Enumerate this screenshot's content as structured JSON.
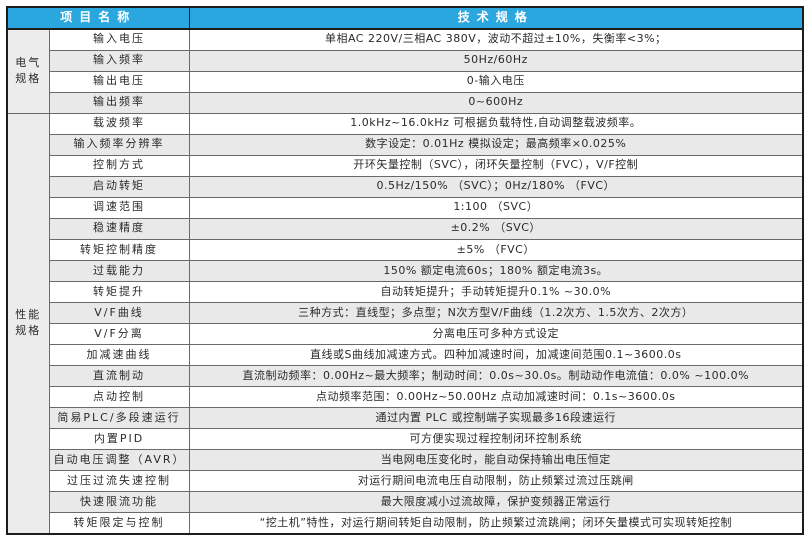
{
  "colors": {
    "header_bg": "#2AA7DF",
    "header_text": "#FFFFFF",
    "row_alt_bg": "#E9E9E9",
    "group_bg": "#ECECEC",
    "inner_border": "#6a6a6a",
    "outer_border": "#1c1c1c"
  },
  "header": {
    "items_col": "项目名称",
    "spec_col": "技术规格"
  },
  "groups": [
    {
      "label": "电气\n规格",
      "rows": [
        {
          "name": "输入电压",
          "value": "单相AC 220V/三相AC 380V，波动不超过±10%，失衡率<3%；",
          "shaded": false
        },
        {
          "name": "输入频率",
          "value": "50Hz/60Hz",
          "shaded": true
        },
        {
          "name": "输出电压",
          "value": "0-输入电压",
          "shaded": false
        },
        {
          "name": "输出频率",
          "value": "0~600Hz",
          "shaded": true
        }
      ]
    },
    {
      "label": "性能\n规格",
      "rows": [
        {
          "name": "载波频率",
          "value": "1.0kHz~16.0kHz 可根据负载特性,自动调整载波频率。",
          "shaded": false
        },
        {
          "name": "输入频率分辨率",
          "value": "数字设定：0.01Hz 模拟设定；最高频率×0.025%",
          "shaded": true
        },
        {
          "name": "控制方式",
          "value": "开环矢量控制（SVC），闭环矢量控制（FVC），V/F控制",
          "shaded": false
        },
        {
          "name": "启动转矩",
          "value": "0.5Hz/150% （SVC）；0Hz/180% （FVC）",
          "shaded": true
        },
        {
          "name": "调速范围",
          "value": "1:100 （SVC）",
          "shaded": false
        },
        {
          "name": "稳速精度",
          "value": "±0.2% （SVC）",
          "shaded": true
        },
        {
          "name": "转矩控制精度",
          "value": "±5% （FVC）",
          "shaded": false
        },
        {
          "name": "过载能力",
          "value": "150% 额定电流60s；180% 额定电流3s。",
          "shaded": true
        },
        {
          "name": "转矩提升",
          "value": "自动转矩提升；手动转矩提升0.1% ~30.0%",
          "shaded": false
        },
        {
          "name": "V/F曲线",
          "value": "三种方式：直线型；多点型；N次方型V/F曲线（1.2次方、1.5次方、2次方）",
          "shaded": true
        },
        {
          "name": "V/F分离",
          "value": "分离电压可多种方式设定",
          "shaded": false
        },
        {
          "name": "加减速曲线",
          "value": "直线或S曲线加减速方式。四种加减速时间，加减速间范围0.1~3600.0s",
          "shaded": false
        },
        {
          "name": "直流制动",
          "value": "直流制动频率：0.00Hz~最大频率；制动时间：0.0s~30.0s。制动动作电流值：0.0% ~100.0%",
          "shaded": true
        },
        {
          "name": "点动控制",
          "value": "点动频率范围：0.00Hz~50.00Hz 点动加减速时间：0.1s~3600.0s",
          "shaded": false
        },
        {
          "name": "简易PLC/多段速运行",
          "value": "通过内置 PLC 或控制端子实现最多16段速运行",
          "shaded": true
        },
        {
          "name": "内置PID",
          "value": "可方便实现过程控制闭环控制系统",
          "shaded": false
        },
        {
          "name": "自动电压调整（AVR）",
          "value": "当电网电压变化时，能自动保持输出电压恒定",
          "shaded": true
        },
        {
          "name": "过压过流失速控制",
          "value": "对运行期间电流电压自动限制，防止频繁过流过压跳闸",
          "shaded": false
        },
        {
          "name": "快速限流功能",
          "value": "最大限度减小过流故障，保护变频器正常运行",
          "shaded": true
        },
        {
          "name": "转矩限定与控制",
          "value": "“挖土机”特性，对运行期间转矩自动限制，防止频繁过流跳闸；闭环矢量模式可实现转矩控制",
          "shaded": false
        }
      ]
    }
  ]
}
